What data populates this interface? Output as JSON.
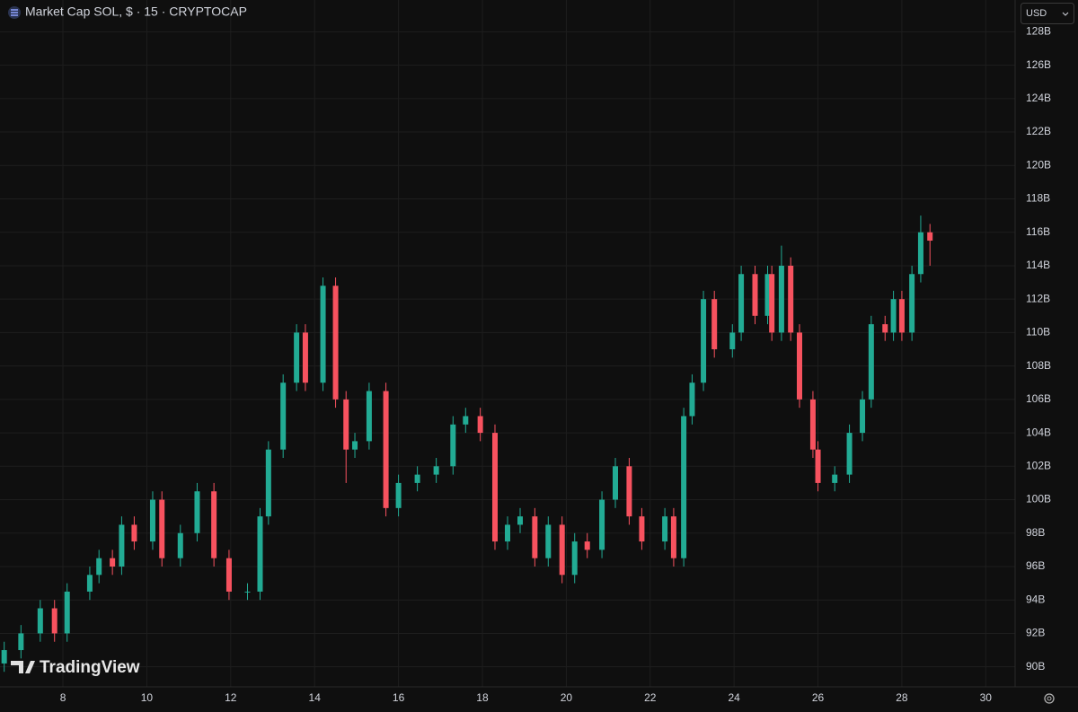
{
  "chart_data": {
    "type": "candlestick",
    "title": "Market Cap SOL, $ · 15 · CRYPTOCAP",
    "currency": "USD",
    "watermark": "TradingView",
    "x": [
      6.6,
      7.0,
      7.46,
      7.8,
      8.1,
      8.64,
      8.86,
      9.18,
      9.4,
      9.7,
      10.14,
      10.36,
      10.8,
      11.2,
      11.6,
      11.96,
      12.4,
      12.7,
      12.9,
      13.25,
      13.57,
      13.78,
      14.2,
      14.5,
      14.75,
      14.96,
      15.3,
      15.7,
      16.0,
      16.45,
      16.9,
      17.3,
      17.6,
      17.95,
      18.3,
      18.6,
      18.9,
      19.25,
      19.57,
      19.9,
      20.2,
      20.5,
      20.85,
      21.17,
      21.5,
      21.8,
      22.35,
      22.56,
      22.8,
      23.0,
      23.27,
      23.53,
      23.96,
      24.17,
      24.5,
      24.8,
      24.9,
      25.13,
      25.35,
      25.56,
      25.88,
      26.0,
      26.4,
      26.75,
      27.06,
      27.27,
      27.6,
      27.8,
      28.0,
      28.24,
      28.45,
      28.67
    ],
    "open": [
      90.2,
      91,
      92,
      93.5,
      92,
      94.5,
      95.5,
      96.5,
      96,
      98.5,
      97.5,
      100,
      96.5,
      98,
      100.5,
      96.5,
      94.5,
      94.5,
      99,
      103,
      107,
      110,
      107,
      112.8,
      106,
      103,
      103.5,
      106.5,
      99.5,
      101,
      101.5,
      102,
      104.5,
      105,
      104,
      97.5,
      98.5,
      99,
      96.5,
      98.5,
      95.5,
      97.5,
      97,
      100,
      102,
      99,
      97.5,
      99,
      96.5,
      105,
      107,
      112,
      109,
      110,
      113.5,
      111,
      113.5,
      110,
      114,
      110,
      106,
      103,
      101,
      101.5,
      104,
      106,
      110.5,
      110,
      112,
      110,
      113.5,
      116
    ],
    "high": [
      91.5,
      92.5,
      94,
      94,
      95,
      96,
      97,
      97,
      99,
      99,
      100.5,
      100.5,
      98.5,
      101,
      101,
      97,
      95,
      99.5,
      103.5,
      107.5,
      110.5,
      110.5,
      113.3,
      113.3,
      106.5,
      104,
      107,
      107,
      101.5,
      102,
      102.5,
      105,
      105.5,
      105.5,
      104.5,
      99,
      99.5,
      99.5,
      99,
      99,
      98,
      98,
      100.5,
      102.5,
      102.5,
      99.5,
      99.5,
      99.5,
      105.5,
      107.5,
      112.5,
      112.5,
      110.5,
      114,
      114,
      114,
      114,
      115.2,
      114.5,
      110.5,
      106.5,
      103.5,
      102,
      104.5,
      106.5,
      111,
      111,
      112.5,
      112.5,
      114,
      117,
      116.5
    ],
    "low": [
      89.7,
      90.5,
      91.5,
      91.5,
      91.5,
      94,
      95,
      95.5,
      95.5,
      97,
      97,
      96,
      96,
      97.5,
      96,
      94,
      94,
      94,
      98.5,
      102.5,
      106.5,
      106.5,
      106.5,
      105.5,
      101,
      102.5,
      103,
      99,
      99,
      100.5,
      101,
      101.5,
      104,
      103.5,
      97,
      97,
      98,
      96,
      96,
      95,
      95,
      96.5,
      96.5,
      99.5,
      98.5,
      97,
      97,
      96,
      96,
      104.5,
      106.5,
      108.5,
      108.5,
      109.5,
      110.5,
      110.5,
      109.5,
      109.5,
      109.5,
      105.5,
      102.5,
      100.5,
      100.5,
      101,
      103.5,
      105.5,
      109.5,
      109.5,
      109.5,
      109.5,
      113,
      114
    ],
    "close": [
      91,
      92,
      93.5,
      92,
      94.5,
      95.5,
      96.5,
      96,
      98.5,
      97.5,
      100,
      96.5,
      98,
      100.5,
      96.5,
      94.5,
      94.5,
      99,
      103,
      107,
      110,
      107,
      112.8,
      106,
      103,
      103.5,
      106.5,
      99.5,
      101,
      101.5,
      102,
      104.5,
      105,
      104,
      97.5,
      98.5,
      99,
      96.5,
      98.5,
      95.5,
      97.5,
      97,
      100,
      102,
      99,
      97.5,
      99,
      96.5,
      105,
      107,
      112,
      109,
      110,
      113.5,
      111,
      113.5,
      110,
      114,
      110,
      106,
      103,
      101,
      101.5,
      104,
      106,
      110.5,
      110,
      112,
      110,
      113.5,
      116,
      115.5
    ],
    "up_color": "#22ab94",
    "down_color": "#f7525f",
    "xlim": [
      6.5,
      30.7
    ],
    "xticks": [
      8,
      10,
      12,
      14,
      16,
      18,
      20,
      22,
      24,
      26,
      28,
      30
    ],
    "ylim": [
      88.8,
      129.9
    ],
    "yticks": [
      {
        "value": 90,
        "label": "90B"
      },
      {
        "value": 92,
        "label": "92B"
      },
      {
        "value": 94,
        "label": "94B"
      },
      {
        "value": 96,
        "label": "96B"
      },
      {
        "value": 98,
        "label": "98B"
      },
      {
        "value": 100,
        "label": "100B"
      },
      {
        "value": 102,
        "label": "102B"
      },
      {
        "value": 104,
        "label": "104B"
      },
      {
        "value": 106,
        "label": "106B"
      },
      {
        "value": 108,
        "label": "108B"
      },
      {
        "value": 110,
        "label": "110B"
      },
      {
        "value": 112,
        "label": "112B"
      },
      {
        "value": 114,
        "label": "114B"
      },
      {
        "value": 116,
        "label": "116B"
      },
      {
        "value": 118,
        "label": "118B"
      },
      {
        "value": 120,
        "label": "120B"
      },
      {
        "value": 122,
        "label": "122B"
      },
      {
        "value": 124,
        "label": "124B"
      },
      {
        "value": 126,
        "label": "126B"
      },
      {
        "value": 128,
        "label": "128B"
      }
    ],
    "grid": true
  }
}
